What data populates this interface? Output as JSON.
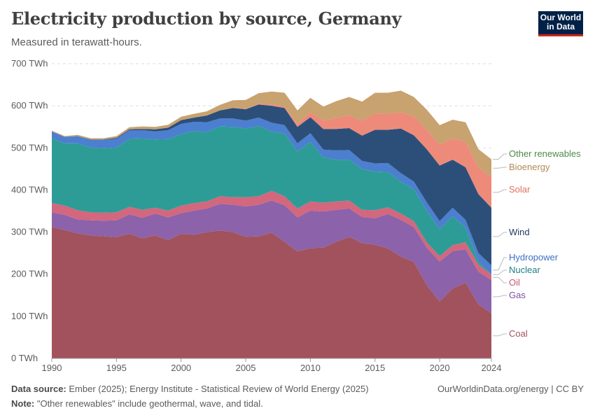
{
  "header": {
    "title": "Electricity production by source, Germany",
    "subtitle": "Measured in terawatt-hours.",
    "logo_line1": "Our World",
    "logo_line2": "in Data"
  },
  "footer": {
    "source_label": "Data source:",
    "source_text": "Ember (2025); Energy Institute - Statistical Review of World Energy (2025)",
    "note_label": "Note:",
    "note_text": "\"Other renewables\" include geothermal, wave, and tidal.",
    "credit": "OurWorldinData.org/energy | CC BY"
  },
  "chart_data": {
    "type": "area",
    "stacked": true,
    "title": "Electricity production by source, Germany",
    "subtitle": "Measured in terawatt-hours.",
    "ylim": [
      0,
      700
    ],
    "yticks": [
      0,
      100,
      200,
      300,
      400,
      500,
      600,
      700
    ],
    "ytick_labels": [
      "0 TWh",
      "100 TWh",
      "200 TWh",
      "300 TWh",
      "400 TWh",
      "500 TWh",
      "600 TWh",
      "700 TWh"
    ],
    "xlim": [
      1990,
      2024
    ],
    "xticks": [
      1990,
      1995,
      2000,
      2005,
      2010,
      2015,
      2020,
      2024
    ],
    "grid": true,
    "legend": "right, labels at series ends",
    "x": [
      1990,
      1991,
      1992,
      1993,
      1994,
      1995,
      1996,
      1997,
      1998,
      1999,
      2000,
      2001,
      2002,
      2003,
      2004,
      2005,
      2006,
      2007,
      2008,
      2009,
      2010,
      2011,
      2012,
      2013,
      2014,
      2015,
      2016,
      2017,
      2018,
      2019,
      2020,
      2021,
      2022,
      2023,
      2024
    ],
    "series": [
      {
        "name": "Coal",
        "color": "#a2525c",
        "values": [
          312,
          305,
          297,
          292,
          290,
          288,
          296,
          285,
          292,
          281,
          296,
          294,
          300,
          304,
          300,
          289,
          290,
          299,
          277,
          254,
          262,
          263,
          277,
          289,
          274,
          270,
          261,
          242,
          229,
          174,
          135,
          166,
          180,
          128,
          107
        ]
      },
      {
        "name": "Gas",
        "color": "#8c62aa",
        "values": [
          35,
          36,
          33,
          36,
          37,
          40,
          46,
          49,
          52,
          54,
          49,
          57,
          56,
          63,
          65,
          72,
          75,
          76,
          87,
          81,
          89,
          86,
          76,
          67,
          62,
          63,
          82,
          87,
          83,
          89,
          95,
          89,
          79,
          78,
          79
        ]
      },
      {
        "name": "Oil",
        "color": "#d3677d",
        "values": [
          22,
          22,
          22,
          19,
          19,
          19,
          18,
          19,
          14,
          16,
          18,
          18,
          17,
          18,
          18,
          22,
          20,
          23,
          21,
          21,
          22,
          21,
          20,
          19,
          17,
          19,
          16,
          15,
          14,
          13,
          13,
          14,
          17,
          17,
          13
        ]
      },
      {
        "name": "Nuclear",
        "color": "#2d9c96",
        "values": [
          153,
          148,
          159,
          154,
          153,
          154,
          162,
          170,
          162,
          170,
          170,
          171,
          165,
          166,
          167,
          163,
          167,
          141,
          149,
          136,
          141,
          108,
          99,
          97,
          97,
          92,
          84,
          76,
          76,
          75,
          64,
          69,
          35,
          7,
          0
        ]
      },
      {
        "name": "Hydropower",
        "color": "#4c7fcf",
        "values": [
          17,
          15,
          17,
          18,
          20,
          21,
          20,
          19,
          19,
          21,
          24,
          22,
          23,
          19,
          20,
          19,
          20,
          21,
          20,
          19,
          21,
          18,
          22,
          23,
          19,
          19,
          21,
          20,
          18,
          20,
          19,
          20,
          18,
          20,
          22
        ]
      },
      {
        "name": "Wind",
        "color": "#2c4f7a",
        "values": [
          0,
          0,
          0,
          1,
          1,
          2,
          2,
          3,
          5,
          6,
          9,
          10,
          16,
          19,
          25,
          27,
          31,
          40,
          41,
          39,
          38,
          49,
          51,
          52,
          60,
          80,
          79,
          106,
          110,
          126,
          132,
          114,
          125,
          140,
          137
        ]
      },
      {
        "name": "Solar",
        "color": "#ee8a7a",
        "values": [
          0,
          0,
          0,
          0,
          0,
          0,
          0,
          0,
          0,
          0,
          0,
          0,
          0,
          0,
          1,
          1,
          2,
          3,
          4,
          7,
          12,
          20,
          26,
          31,
          36,
          39,
          38,
          39,
          45,
          46,
          50,
          50,
          61,
          63,
          73
        ]
      },
      {
        "name": "Bioenergy",
        "color": "#c8a26f",
        "values": [
          2,
          2,
          3,
          3,
          3,
          4,
          5,
          6,
          6,
          7,
          8,
          9,
          10,
          13,
          17,
          21,
          25,
          31,
          32,
          32,
          34,
          33,
          40,
          43,
          45,
          49,
          50,
          51,
          46,
          48,
          46,
          45,
          46,
          44,
          42
        ]
      },
      {
        "name": "Other renewables",
        "color": "#4f8a47",
        "values": [
          0,
          0,
          0,
          0,
          0,
          0,
          0,
          0,
          0,
          0,
          0,
          0,
          0,
          0,
          0,
          0,
          0,
          0,
          0,
          0,
          0,
          0,
          0,
          0,
          0,
          0,
          0,
          0,
          0,
          0,
          0,
          0,
          0,
          0,
          0
        ]
      }
    ]
  }
}
